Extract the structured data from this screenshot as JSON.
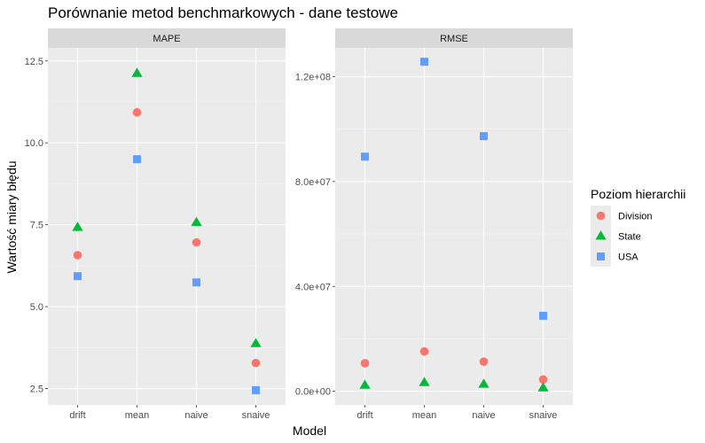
{
  "chart_data": {
    "type": "scatter",
    "title": "Porównanie metod benchmarkowych - dane testowe",
    "xlabel": "Model",
    "ylabel": "Wartość miary błędu",
    "categories": [
      "drift",
      "mean",
      "naive",
      "snaive"
    ],
    "legend": {
      "title": "Poziom hierarchii",
      "placement": "right",
      "entries": [
        {
          "name": "Division",
          "color": "#F8766D",
          "shape": "circle"
        },
        {
          "name": "State",
          "color": "#00BA38",
          "shape": "triangle"
        },
        {
          "name": "USA",
          "color": "#619CFF",
          "shape": "square"
        }
      ]
    },
    "panels": [
      {
        "strip": "MAPE",
        "ylim": [
          2.0,
          12.9
        ],
        "y_ticks": [
          {
            "value": 2.5,
            "label": "2.5"
          },
          {
            "value": 5.0,
            "label": "5.0"
          },
          {
            "value": 7.5,
            "label": "7.5"
          },
          {
            "value": 10.0,
            "label": "10.0"
          },
          {
            "value": 12.5,
            "label": "12.5"
          }
        ],
        "series": [
          {
            "name": "Division",
            "values": [
              6.57,
              10.93,
              6.96,
              3.28
            ]
          },
          {
            "name": "State",
            "values": [
              7.42,
              12.12,
              7.57,
              3.87
            ]
          },
          {
            "name": "USA",
            "values": [
              5.93,
              9.5,
              5.74,
              2.45
            ]
          }
        ]
      },
      {
        "strip": "RMSE",
        "ylim": [
          -5200000,
          131000000
        ],
        "y_ticks": [
          {
            "value": 0,
            "label": "0.0e+00"
          },
          {
            "value": 40000000,
            "label": "4.0e+07"
          },
          {
            "value": 80000000,
            "label": "8.0e+07"
          },
          {
            "value": 120000000,
            "label": "1.2e+08"
          }
        ],
        "series": [
          {
            "name": "Division",
            "values": [
              10700000,
              15200000,
              11300000,
              4500000
            ]
          },
          {
            "name": "State",
            "values": [
              2300000,
              3300000,
              2700000,
              1300000
            ]
          },
          {
            "name": "USA",
            "values": [
              89500000,
              125700000,
              97300000,
              28800000
            ]
          }
        ]
      }
    ]
  }
}
